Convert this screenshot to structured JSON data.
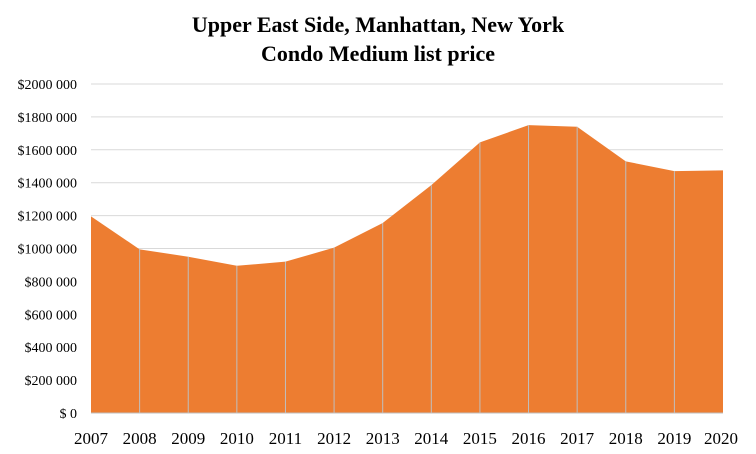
{
  "chart_data": {
    "type": "area",
    "title_lines": [
      "Upper East Side, Manhattan, New York",
      "Condo Medium list price"
    ],
    "x": [
      "2007",
      "2008",
      "2009",
      "2010",
      "2011",
      "2012",
      "2013",
      "2014",
      "2015",
      "2016",
      "2017",
      "2018",
      "2019",
      "2020"
    ],
    "series": [
      {
        "name": "Condo Medium list price",
        "values": [
          1195000,
          995000,
          950000,
          895000,
          920000,
          1005000,
          1155000,
          1385000,
          1645000,
          1750000,
          1740000,
          1530000,
          1470000,
          1475000
        ]
      }
    ],
    "ylim": [
      0,
      2000000
    ],
    "yticks": [
      0,
      200000,
      400000,
      600000,
      800000,
      1000000,
      1200000,
      1400000,
      1600000,
      1800000,
      2000000
    ],
    "ytick_labels": [
      "$ 0",
      "$200 000",
      "$400 000",
      "$600 000",
      "$800 000",
      "$1000 000",
      "$1200 000",
      "$1400 000",
      "$1600 000",
      "$1800 000",
      "$2000 000"
    ],
    "xlabel": "",
    "ylabel": "",
    "grid": true,
    "colors": {
      "area": "#ED7D31",
      "grid": "#D9D9D9",
      "separator": "#BFBFBF"
    }
  }
}
